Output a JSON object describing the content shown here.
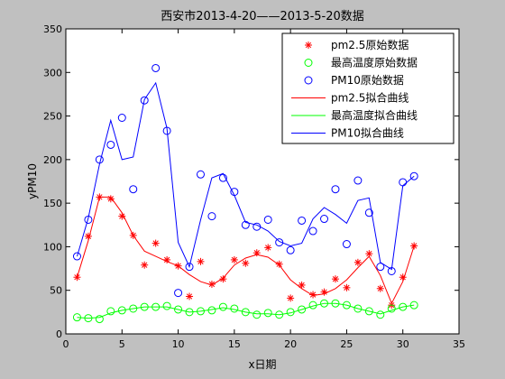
{
  "chart_data": {
    "type": "scatter",
    "title": "西安市2013-4-20——2013-5-20数据",
    "xlabel": "x日期",
    "ylabel": "yPM10",
    "xlim": [
      0,
      35
    ],
    "ylim": [
      0,
      350
    ],
    "xticks": [
      0,
      5,
      10,
      15,
      20,
      25,
      30,
      35
    ],
    "yticks": [
      0,
      50,
      100,
      150,
      200,
      250,
      300,
      350
    ],
    "grid": false,
    "legend_position": "top-right",
    "series": [
      {
        "name": "pm2.5原始数据",
        "kind": "markers",
        "marker": "asterisk",
        "color": "#ff0000",
        "x": [
          1,
          2,
          3,
          4,
          5,
          6,
          7,
          8,
          9,
          10,
          11,
          12,
          13,
          14,
          15,
          16,
          17,
          18,
          19,
          20,
          21,
          22,
          23,
          24,
          25,
          26,
          27,
          28,
          29,
          30,
          31
        ],
        "y": [
          65,
          112,
          157,
          155,
          135,
          113,
          79,
          104,
          85,
          78,
          43,
          83,
          57,
          63,
          85,
          81,
          93,
          99,
          80,
          41,
          56,
          45,
          48,
          63,
          53,
          82,
          92,
          52,
          33,
          65,
          101
        ]
      },
      {
        "name": "最高温度原始数据",
        "kind": "markers",
        "marker": "circle",
        "color": "#00ff00",
        "x": [
          1,
          2,
          3,
          4,
          5,
          6,
          7,
          8,
          9,
          10,
          11,
          12,
          13,
          14,
          15,
          16,
          17,
          18,
          19,
          20,
          21,
          22,
          23,
          24,
          25,
          26,
          27,
          28,
          29,
          30,
          31
        ],
        "y": [
          19,
          18,
          17,
          26,
          27,
          29,
          31,
          31,
          32,
          28,
          25,
          26,
          27,
          31,
          29,
          25,
          22,
          24,
          22,
          25,
          28,
          33,
          35,
          35,
          33,
          29,
          26,
          22,
          29,
          31,
          33
        ]
      },
      {
        "name": "PM10原始数据",
        "kind": "markers",
        "marker": "circle",
        "color": "#0000ff",
        "x": [
          1,
          2,
          3,
          4,
          5,
          6,
          7,
          8,
          9,
          10,
          11,
          12,
          13,
          14,
          15,
          16,
          17,
          18,
          19,
          20,
          21,
          22,
          23,
          24,
          25,
          26,
          27,
          28,
          29,
          30,
          31
        ],
        "y": [
          89,
          131,
          200,
          217,
          248,
          166,
          268,
          305,
          233,
          47,
          77,
          183,
          135,
          179,
          163,
          125,
          123,
          131,
          105,
          96,
          130,
          118,
          132,
          166,
          103,
          176,
          139,
          77,
          72,
          174,
          181
        ]
      },
      {
        "name": "pm2.5拟合曲线",
        "kind": "line",
        "color": "#ff0000",
        "x": [
          1,
          2,
          3,
          4,
          5,
          6,
          7,
          8,
          9,
          10,
          11,
          12,
          13,
          14,
          15,
          16,
          17,
          18,
          19,
          20,
          21,
          22,
          23,
          24,
          25,
          26,
          27,
          28,
          29,
          30,
          31
        ],
        "y": [
          65,
          107,
          157,
          157,
          139,
          113,
          95,
          89,
          83,
          78,
          68,
          60,
          56,
          64,
          79,
          87,
          91,
          88,
          79,
          62,
          52,
          44,
          46,
          52,
          62,
          76,
          89,
          67,
          35,
          60,
          101
        ]
      },
      {
        "name": "最高温度拟合曲线",
        "kind": "line",
        "color": "#00ff00",
        "x": [
          1,
          2,
          3,
          4,
          5,
          6,
          7,
          8,
          9,
          10,
          11,
          12,
          13,
          14,
          15,
          16,
          17,
          18,
          19,
          20,
          21,
          22,
          23,
          24,
          25,
          26,
          27,
          28,
          29,
          30,
          31
        ],
        "y": [
          19,
          18,
          19,
          24,
          27,
          29,
          31,
          31,
          31,
          28,
          25,
          26,
          28,
          30,
          28,
          25,
          23,
          23,
          22,
          24,
          28,
          32,
          35,
          35,
          33,
          29,
          26,
          23,
          27,
          31,
          33
        ]
      },
      {
        "name": "PM10拟合曲线",
        "kind": "line",
        "color": "#0000ff",
        "x": [
          1,
          2,
          3,
          4,
          5,
          6,
          7,
          8,
          9,
          10,
          11,
          12,
          13,
          14,
          15,
          16,
          17,
          18,
          19,
          20,
          21,
          22,
          23,
          24,
          25,
          26,
          27,
          28,
          29,
          30,
          31
        ],
        "y": [
          89,
          133,
          195,
          245,
          200,
          203,
          269,
          288,
          236,
          105,
          77,
          131,
          179,
          184,
          159,
          128,
          125,
          118,
          106,
          101,
          104,
          132,
          145,
          137,
          127,
          153,
          156,
          82,
          74,
          170,
          181
        ]
      }
    ]
  }
}
